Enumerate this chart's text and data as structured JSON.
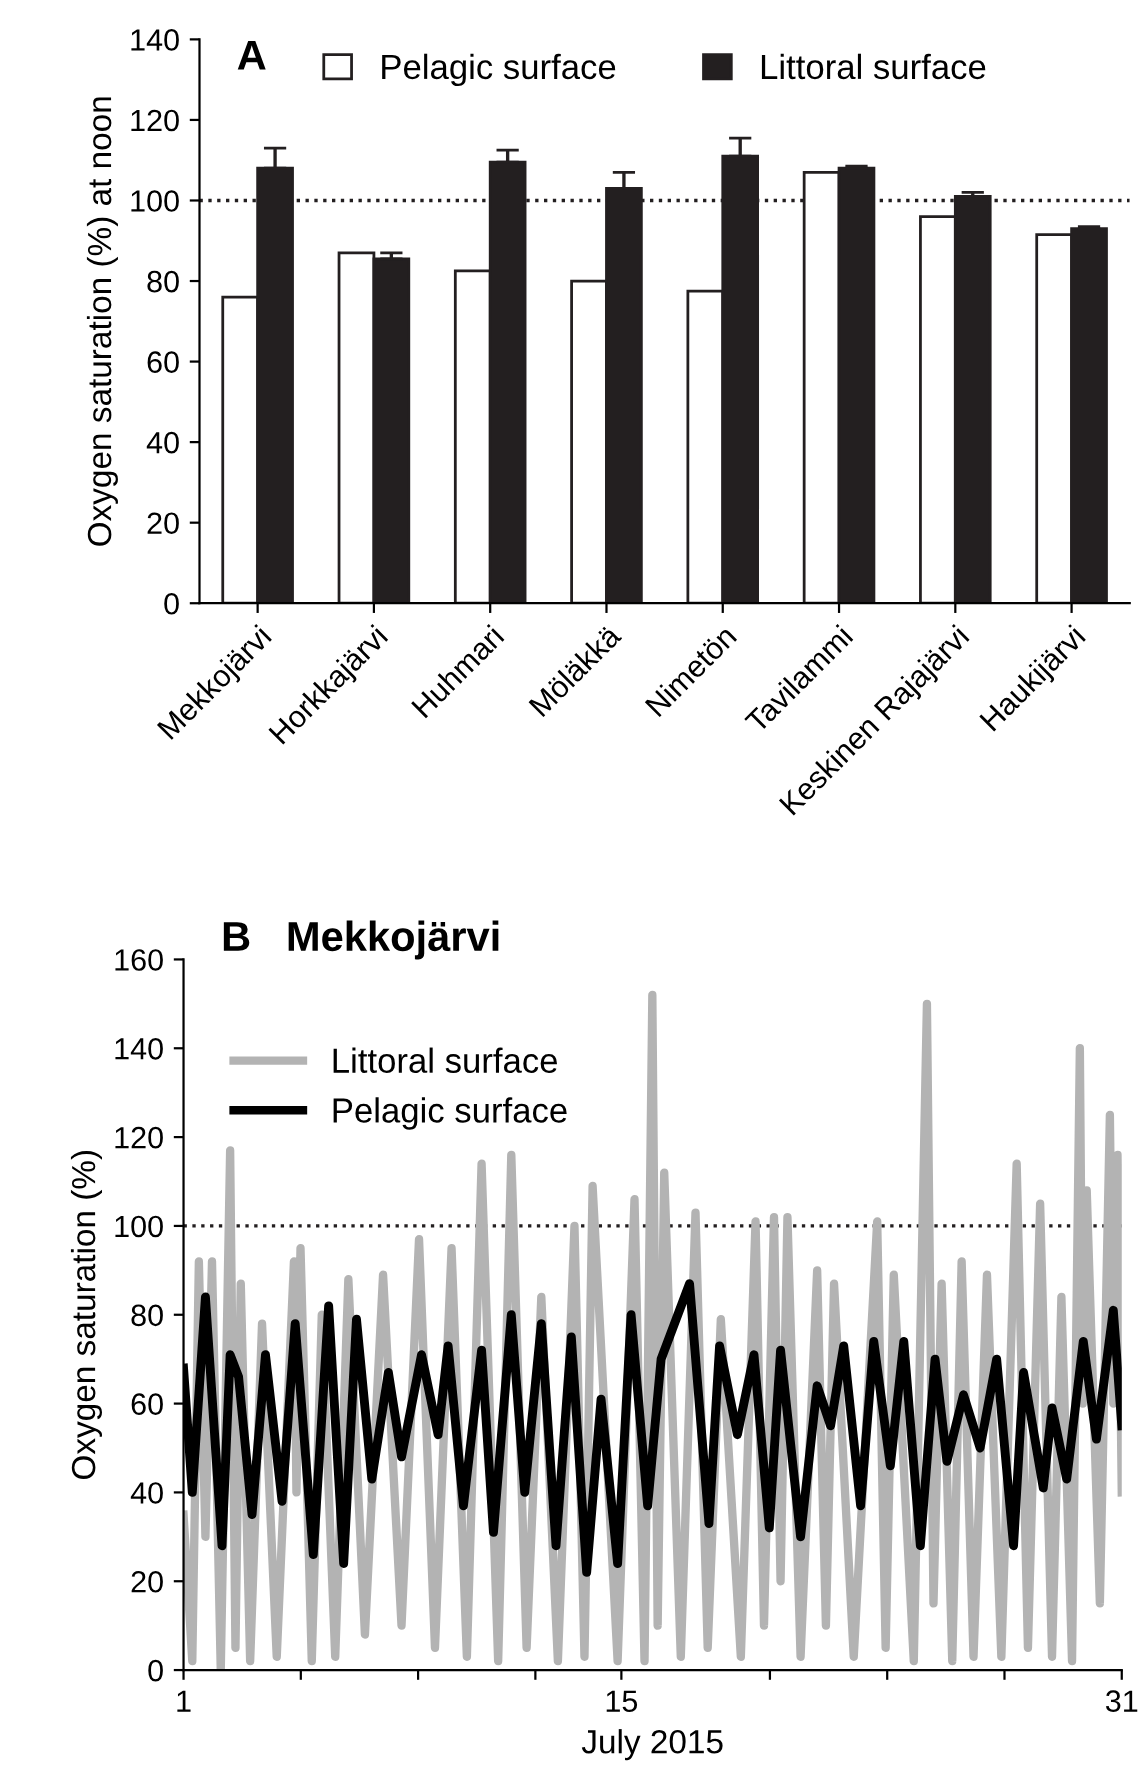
{
  "chart_data": [
    {
      "type": "bar",
      "title": "A",
      "ylabel": "Oxygen saturation (%) at noon",
      "categories": [
        "Mekkojärvi",
        "Horkkajärvi",
        "Huhmari",
        "Möläkkä",
        "Nimetön",
        "Tavilammi",
        "Keskinen Rajajärvi",
        "Haukijärvi"
      ],
      "series": [
        {
          "name": "Pelagic surface",
          "color": "#ffffff",
          "values": [
            76,
            87,
            82.5,
            80,
            77.5,
            107,
            96,
            91.5
          ]
        },
        {
          "name": "Littoral surface",
          "color": "#231f20",
          "values": [
            108,
            85.5,
            109.5,
            103,
            111,
            108,
            101,
            93
          ],
          "errors": [
            [
              108,
              113
            ],
            [
              85.5,
              87
            ],
            [
              109.5,
              112.5
            ],
            [
              103,
              107
            ],
            [
              111,
              115.5
            ],
            [
              108,
              108.5
            ],
            [
              101,
              102
            ],
            [
              93,
              93.5
            ]
          ]
        }
      ],
      "ylim": [
        0,
        140
      ],
      "yticks": [
        0,
        20,
        40,
        60,
        80,
        100,
        120,
        140
      ],
      "ref_lines": [
        {
          "axis": "y",
          "value": 100,
          "line_style": "dotted",
          "color": "#231f20"
        }
      ],
      "legend": "top",
      "grid": false
    },
    {
      "type": "line",
      "title": "B   Mekkojärvi",
      "ylabel": "Oxygen saturation (%)",
      "xlabel": "July 2015",
      "series": [
        {
          "name": "Littoral surface",
          "color": "#b3b3b3",
          "x": [
            1.0,
            1.28,
            1.49,
            1.7,
            1.91,
            2.19,
            2.49,
            2.66,
            2.83,
            3.13,
            3.51,
            3.98,
            4.53,
            4.61,
            4.74,
            5.1,
            5.42,
            5.85,
            6.27,
            6.8,
            7.38,
            7.97,
            8.53,
            9.04,
            9.57,
            10.06,
            10.53,
            11.06,
            11.48,
            11.97,
            12.44,
            12.97,
            13.5,
            13.82,
            14.08,
            14.88,
            15.42,
            15.74,
            15.99,
            16.16,
            16.37,
            16.9,
            17.37,
            17.76,
            18.18,
            18.82,
            19.29,
            19.56,
            19.88,
            20.09,
            20.31,
            20.73,
            21.26,
            21.54,
            21.8,
            22.43,
            23.18,
            23.45,
            23.71,
            24.35,
            24.77,
            24.98,
            25.24,
            25.58,
            25.88,
            26.26,
            26.69,
            27.15,
            27.64,
            28.0,
            28.39,
            28.77,
            29.07,
            29.41,
            29.66,
            29.75,
            29.88,
            30.3,
            30.62,
            30.73,
            30.87,
            31.0
          ],
          "values": [
            35,
            2,
            92,
            30,
            92,
            0,
            117,
            5,
            87,
            2,
            78,
            3,
            92,
            40,
            95,
            2,
            80,
            3,
            88,
            8,
            89,
            10,
            97,
            5,
            95,
            3,
            114,
            2,
            116,
            5,
            84,
            2,
            100,
            3,
            109,
            2,
            106,
            2,
            152,
            10,
            112,
            3,
            103,
            5,
            79,
            3,
            101,
            10,
            102,
            20,
            102,
            3,
            90,
            10,
            87,
            3,
            101,
            5,
            89,
            2,
            150,
            15,
            87,
            2,
            92,
            3,
            89,
            3,
            114,
            5,
            105,
            3,
            84,
            2,
            140,
            60,
            108,
            15,
            125,
            60,
            116,
            40
          ]
        },
        {
          "name": "Pelagic surface",
          "color": "#000000",
          "x": [
            1.0,
            1.28,
            1.7,
            2.23,
            2.49,
            2.76,
            3.19,
            3.62,
            4.15,
            4.57,
            5.15,
            5.64,
            6.12,
            6.53,
            7.02,
            7.55,
            7.97,
            8.61,
            9.14,
            9.46,
            9.95,
            10.53,
            10.91,
            11.48,
            11.91,
            12.44,
            12.91,
            13.4,
            13.89,
            14.35,
            14.88,
            15.31,
            15.84,
            16.27,
            17.18,
            17.8,
            18.14,
            18.71,
            19.24,
            19.73,
            20.09,
            20.73,
            21.26,
            21.69,
            22.11,
            22.65,
            23.07,
            23.6,
            24.03,
            24.56,
            25.03,
            25.41,
            25.94,
            26.47,
            27.0,
            27.54,
            27.86,
            28.49,
            28.77,
            29.24,
            29.77,
            30.19,
            30.73,
            31.0
          ],
          "values": [
            68,
            40,
            84,
            28,
            71,
            66,
            35,
            71,
            38,
            78,
            26,
            82,
            24,
            79,
            43,
            67,
            48,
            71,
            53,
            73,
            37,
            72,
            31,
            80,
            40,
            78,
            28,
            75,
            22,
            61,
            24,
            80,
            37,
            70,
            87,
            33,
            73,
            53,
            71,
            32,
            72,
            30,
            64,
            55,
            73,
            37,
            74,
            46,
            74,
            28,
            70,
            47,
            62,
            50,
            70,
            28,
            67,
            41,
            59,
            43,
            74,
            52,
            81,
            55
          ]
        }
      ],
      "xlim": [
        1,
        31
      ],
      "xticks": [
        1,
        {
          "value": 4.75,
          "label": null
        },
        {
          "value": 8.5,
          "label": null
        },
        {
          "value": 12.25,
          "label": null
        },
        15,
        {
          "value": 19.75,
          "label": null
        },
        {
          "value": 23.5,
          "label": null
        },
        {
          "value": 27.25,
          "label": null
        },
        31
      ],
      "ylim": [
        0,
        160
      ],
      "yticks": [
        0,
        20,
        40,
        60,
        80,
        100,
        120,
        140,
        160
      ],
      "ref_lines": [
        {
          "axis": "y",
          "value": 100,
          "line_style": "dotted",
          "color": "#231f20"
        }
      ],
      "legend": "top left",
      "grid": false
    }
  ]
}
